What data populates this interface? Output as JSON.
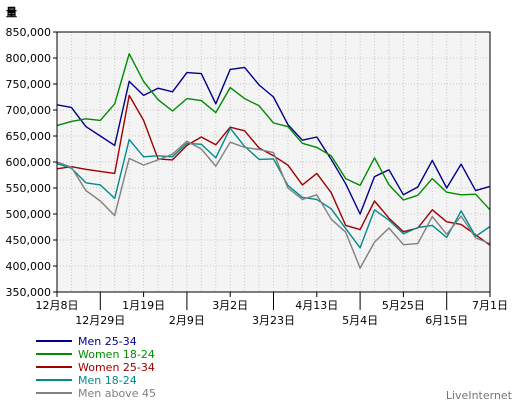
{
  "chart_data": {
    "type": "line",
    "ylabel": "量",
    "ylim": [
      350000,
      850000
    ],
    "yticks": [
      850000,
      800000,
      750000,
      700000,
      650000,
      600000,
      550000,
      500000,
      450000,
      400000,
      350000
    ],
    "ytick_labels": [
      "850,000",
      "800,000",
      "750,000",
      "700,000",
      "650,000",
      "600,000",
      "550,000",
      "500,000",
      "450,000",
      "400,000",
      "350,000"
    ],
    "xtick_labels": [
      {
        "label": "12月8日",
        "week": 0
      },
      {
        "label": "12月29日",
        "week": 3
      },
      {
        "label": "1月19日",
        "week": 6
      },
      {
        "label": "2月9日",
        "week": 9
      },
      {
        "label": "3月2日",
        "week": 12
      },
      {
        "label": "3月23日",
        "week": 15
      },
      {
        "label": "4月13日",
        "week": 18
      },
      {
        "label": "5月4日",
        "week": 21
      },
      {
        "label": "5月25日",
        "week": 24
      },
      {
        "label": "6月15日",
        "week": 27
      },
      {
        "label": "7月1日",
        "week": 30
      }
    ],
    "grid": true,
    "legend_position": "bottom-left",
    "credit": "LiveInternet",
    "series": [
      {
        "name": "Men 25-34",
        "color": "#00008b",
        "values": [
          710000,
          705000,
          668000,
          650000,
          632000,
          755000,
          728000,
          742000,
          735000,
          772000,
          770000,
          712000,
          778000,
          782000,
          748000,
          725000,
          672000,
          642000,
          648000,
          605000,
          558000,
          500000,
          572000,
          585000,
          537000,
          552000,
          603000,
          550000,
          596000,
          545000,
          553000
        ]
      },
      {
        "name": "Women 18-24",
        "color": "#008b00",
        "values": [
          670000,
          678000,
          683000,
          680000,
          712000,
          808000,
          755000,
          720000,
          698000,
          722000,
          718000,
          695000,
          743000,
          722000,
          708000,
          675000,
          668000,
          636000,
          628000,
          612000,
          568000,
          555000,
          608000,
          556000,
          527000,
          536000,
          568000,
          542000,
          537000,
          538000,
          508000
        ]
      },
      {
        "name": "Women 25-34",
        "color": "#a00000",
        "values": [
          587000,
          591000,
          586000,
          582000,
          578000,
          728000,
          680000,
          606000,
          604000,
          632000,
          648000,
          633000,
          667000,
          660000,
          627000,
          612000,
          594000,
          556000,
          578000,
          541000,
          478000,
          470000,
          525000,
          492000,
          466000,
          473000,
          508000,
          485000,
          480000,
          460000,
          440000
        ]
      },
      {
        "name": "Men 18-24",
        "color": "#008b8b",
        "values": [
          597000,
          588000,
          560000,
          556000,
          530000,
          643000,
          610000,
          612000,
          610000,
          636000,
          634000,
          608000,
          665000,
          630000,
          605000,
          606000,
          555000,
          532000,
          528000,
          510000,
          472000,
          435000,
          508000,
          488000,
          462000,
          474000,
          478000,
          455000,
          506000,
          457000,
          476000
        ]
      },
      {
        "name": "Men above 45",
        "color": "#808080",
        "values": [
          600000,
          590000,
          545000,
          525000,
          497000,
          607000,
          594000,
          604000,
          615000,
          640000,
          625000,
          592000,
          638000,
          628000,
          624000,
          618000,
          550000,
          528000,
          537000,
          490000,
          465000,
          396000,
          446000,
          473000,
          441000,
          443000,
          495000,
          461000,
          496000,
          454000,
          443000
        ]
      }
    ]
  }
}
